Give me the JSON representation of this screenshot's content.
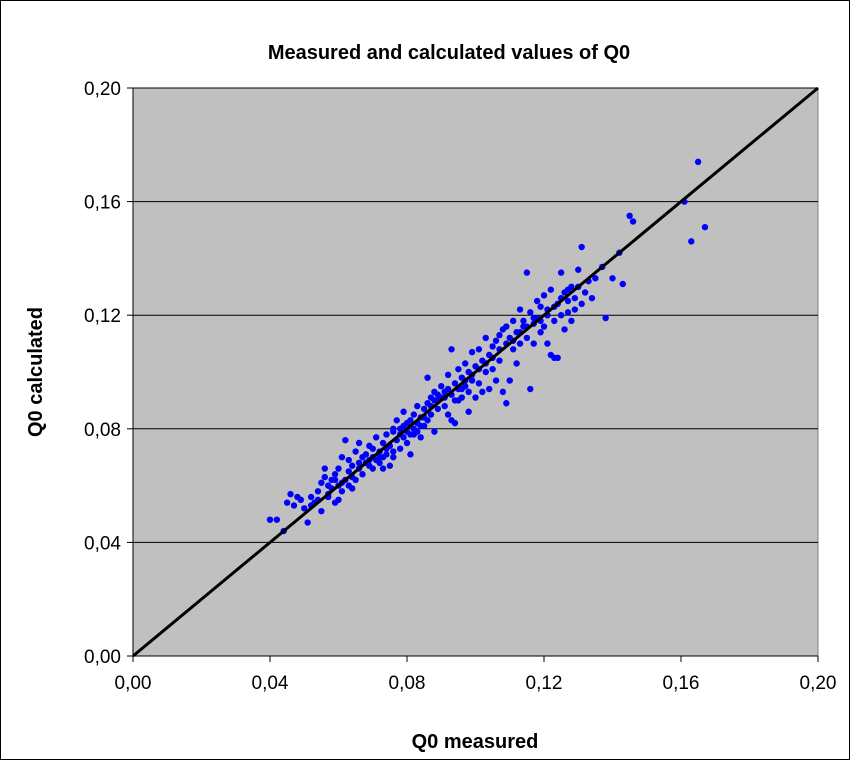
{
  "chart_data": {
    "type": "scatter",
    "title": "Measured and calculated values of Q0",
    "xlabel": "Q0 measured",
    "ylabel": "Q0 calculated",
    "xlim": [
      0,
      0.2
    ],
    "ylim": [
      0,
      0.2
    ],
    "x_ticks": [
      0,
      0.04,
      0.08,
      0.12,
      0.16,
      0.2
    ],
    "y_ticks": [
      0,
      0.04,
      0.08,
      0.12,
      0.16,
      0.2
    ],
    "x_tick_labels": [
      "0,00",
      "0,04",
      "0,08",
      "0,12",
      "0,16",
      "0,20"
    ],
    "y_tick_labels": [
      "0,00",
      "0,04",
      "0,08",
      "0,12",
      "0,16",
      "0,20"
    ],
    "grid": "horizontal",
    "legend": "none",
    "plot_background": "#c0c0c0",
    "point_color": "#0000ff",
    "reference_line": {
      "x": [
        0,
        0.2
      ],
      "y": [
        0,
        0.2
      ],
      "color": "#000000"
    },
    "points": [
      [
        0.04,
        0.048
      ],
      [
        0.042,
        0.048
      ],
      [
        0.044,
        0.044
      ],
      [
        0.045,
        0.054
      ],
      [
        0.046,
        0.057
      ],
      [
        0.047,
        0.053
      ],
      [
        0.048,
        0.056
      ],
      [
        0.049,
        0.055
      ],
      [
        0.05,
        0.052
      ],
      [
        0.051,
        0.047
      ],
      [
        0.052,
        0.053
      ],
      [
        0.052,
        0.056
      ],
      [
        0.053,
        0.054
      ],
      [
        0.054,
        0.058
      ],
      [
        0.055,
        0.051
      ],
      [
        0.055,
        0.061
      ],
      [
        0.056,
        0.063
      ],
      [
        0.056,
        0.066
      ],
      [
        0.057,
        0.057
      ],
      [
        0.058,
        0.059
      ],
      [
        0.058,
        0.062
      ],
      [
        0.059,
        0.054
      ],
      [
        0.059,
        0.064
      ],
      [
        0.06,
        0.06
      ],
      [
        0.06,
        0.066
      ],
      [
        0.061,
        0.058
      ],
      [
        0.061,
        0.07
      ],
      [
        0.062,
        0.062
      ],
      [
        0.062,
        0.076
      ],
      [
        0.063,
        0.06
      ],
      [
        0.063,
        0.065
      ],
      [
        0.064,
        0.059
      ],
      [
        0.064,
        0.067
      ],
      [
        0.065,
        0.062
      ],
      [
        0.065,
        0.072
      ],
      [
        0.066,
        0.066
      ],
      [
        0.066,
        0.075
      ],
      [
        0.067,
        0.064
      ],
      [
        0.068,
        0.068
      ],
      [
        0.068,
        0.071
      ],
      [
        0.069,
        0.067
      ],
      [
        0.069,
        0.074
      ],
      [
        0.07,
        0.07
      ],
      [
        0.07,
        0.073
      ],
      [
        0.071,
        0.069
      ],
      [
        0.071,
        0.077
      ],
      [
        0.072,
        0.068
      ],
      [
        0.072,
        0.072
      ],
      [
        0.073,
        0.075
      ],
      [
        0.073,
        0.066
      ],
      [
        0.074,
        0.071
      ],
      [
        0.074,
        0.078
      ],
      [
        0.075,
        0.067
      ],
      [
        0.075,
        0.074
      ],
      [
        0.076,
        0.072
      ],
      [
        0.076,
        0.08
      ],
      [
        0.077,
        0.076
      ],
      [
        0.077,
        0.083
      ],
      [
        0.078,
        0.078
      ],
      [
        0.078,
        0.073
      ],
      [
        0.079,
        0.081
      ],
      [
        0.079,
        0.086
      ],
      [
        0.08,
        0.079
      ],
      [
        0.08,
        0.075
      ],
      [
        0.081,
        0.083
      ],
      [
        0.081,
        0.071
      ],
      [
        0.082,
        0.08
      ],
      [
        0.082,
        0.085
      ],
      [
        0.083,
        0.082
      ],
      [
        0.083,
        0.088
      ],
      [
        0.084,
        0.077
      ],
      [
        0.084,
        0.084
      ],
      [
        0.085,
        0.087
      ],
      [
        0.085,
        0.081
      ],
      [
        0.086,
        0.089
      ],
      [
        0.086,
        0.098
      ],
      [
        0.087,
        0.085
      ],
      [
        0.087,
        0.091
      ],
      [
        0.088,
        0.079
      ],
      [
        0.088,
        0.093
      ],
      [
        0.089,
        0.09
      ],
      [
        0.089,
        0.087
      ],
      [
        0.09,
        0.095
      ],
      [
        0.09,
        0.091
      ],
      [
        0.091,
        0.088
      ],
      [
        0.091,
        0.093
      ],
      [
        0.092,
        0.085
      ],
      [
        0.092,
        0.099
      ],
      [
        0.093,
        0.108
      ],
      [
        0.093,
        0.083
      ],
      [
        0.094,
        0.096
      ],
      [
        0.094,
        0.082
      ],
      [
        0.095,
        0.101
      ],
      [
        0.095,
        0.094
      ],
      [
        0.096,
        0.098
      ],
      [
        0.096,
        0.091
      ],
      [
        0.097,
        0.103
      ],
      [
        0.097,
        0.095
      ],
      [
        0.098,
        0.1
      ],
      [
        0.098,
        0.086
      ],
      [
        0.099,
        0.097
      ],
      [
        0.099,
        0.107
      ],
      [
        0.1,
        0.102
      ],
      [
        0.1,
        0.091
      ],
      [
        0.101,
        0.096
      ],
      [
        0.101,
        0.108
      ],
      [
        0.102,
        0.104
      ],
      [
        0.102,
        0.093
      ],
      [
        0.103,
        0.1
      ],
      [
        0.103,
        0.112
      ],
      [
        0.104,
        0.106
      ],
      [
        0.104,
        0.094
      ],
      [
        0.105,
        0.109
      ],
      [
        0.105,
        0.101
      ],
      [
        0.106,
        0.111
      ],
      [
        0.106,
        0.097
      ],
      [
        0.107,
        0.113
      ],
      [
        0.107,
        0.104
      ],
      [
        0.108,
        0.115
      ],
      [
        0.108,
        0.093
      ],
      [
        0.109,
        0.116
      ],
      [
        0.109,
        0.089
      ],
      [
        0.11,
        0.112
      ],
      [
        0.11,
        0.097
      ],
      [
        0.111,
        0.118
      ],
      [
        0.111,
        0.108
      ],
      [
        0.112,
        0.114
      ],
      [
        0.112,
        0.103
      ],
      [
        0.113,
        0.122
      ],
      [
        0.113,
        0.11
      ],
      [
        0.114,
        0.116
      ],
      [
        0.114,
        0.118
      ],
      [
        0.115,
        0.135
      ],
      [
        0.115,
        0.112
      ],
      [
        0.116,
        0.094
      ],
      [
        0.116,
        0.121
      ],
      [
        0.117,
        0.117
      ],
      [
        0.117,
        0.11
      ],
      [
        0.118,
        0.125
      ],
      [
        0.118,
        0.119
      ],
      [
        0.119,
        0.123
      ],
      [
        0.119,
        0.114
      ],
      [
        0.12,
        0.127
      ],
      [
        0.12,
        0.116
      ],
      [
        0.121,
        0.12
      ],
      [
        0.121,
        0.11
      ],
      [
        0.122,
        0.106
      ],
      [
        0.122,
        0.129
      ],
      [
        0.123,
        0.105
      ],
      [
        0.123,
        0.118
      ],
      [
        0.124,
        0.124
      ],
      [
        0.124,
        0.105
      ],
      [
        0.125,
        0.135
      ],
      [
        0.125,
        0.12
      ],
      [
        0.126,
        0.128
      ],
      [
        0.126,
        0.115
      ],
      [
        0.127,
        0.129
      ],
      [
        0.127,
        0.121
      ],
      [
        0.128,
        0.118
      ],
      [
        0.128,
        0.13
      ],
      [
        0.129,
        0.126
      ],
      [
        0.129,
        0.122
      ],
      [
        0.13,
        0.136
      ],
      [
        0.13,
        0.13
      ],
      [
        0.131,
        0.144
      ],
      [
        0.131,
        0.124
      ],
      [
        0.132,
        0.128
      ],
      [
        0.133,
        0.132
      ],
      [
        0.134,
        0.126
      ],
      [
        0.135,
        0.133
      ],
      [
        0.137,
        0.137
      ],
      [
        0.138,
        0.119
      ],
      [
        0.14,
        0.133
      ],
      [
        0.142,
        0.142
      ],
      [
        0.143,
        0.131
      ],
      [
        0.145,
        0.155
      ],
      [
        0.146,
        0.153
      ],
      [
        0.161,
        0.16
      ],
      [
        0.163,
        0.146
      ],
      [
        0.165,
        0.174
      ],
      [
        0.167,
        0.151
      ],
      [
        0.057,
        0.06
      ],
      [
        0.06,
        0.055
      ],
      [
        0.063,
        0.069
      ],
      [
        0.067,
        0.07
      ],
      [
        0.07,
        0.066
      ],
      [
        0.073,
        0.07
      ],
      [
        0.076,
        0.07
      ],
      [
        0.079,
        0.077
      ],
      [
        0.081,
        0.078
      ],
      [
        0.083,
        0.079
      ],
      [
        0.085,
        0.084
      ],
      [
        0.087,
        0.088
      ],
      [
        0.089,
        0.092
      ],
      [
        0.091,
        0.091
      ],
      [
        0.093,
        0.092
      ],
      [
        0.095,
        0.09
      ],
      [
        0.097,
        0.097
      ],
      [
        0.099,
        0.099
      ],
      [
        0.101,
        0.101
      ],
      [
        0.103,
        0.103
      ],
      [
        0.105,
        0.105
      ],
      [
        0.107,
        0.108
      ],
      [
        0.109,
        0.11
      ],
      [
        0.111,
        0.111
      ],
      [
        0.113,
        0.114
      ],
      [
        0.115,
        0.116
      ],
      [
        0.117,
        0.119
      ],
      [
        0.119,
        0.118
      ],
      [
        0.121,
        0.122
      ],
      [
        0.123,
        0.123
      ],
      [
        0.125,
        0.126
      ],
      [
        0.127,
        0.125
      ],
      [
        0.092,
        0.094
      ],
      [
        0.094,
        0.09
      ],
      [
        0.096,
        0.094
      ],
      [
        0.098,
        0.093
      ],
      [
        0.088,
        0.09
      ],
      [
        0.086,
        0.083
      ],
      [
        0.084,
        0.081
      ],
      [
        0.082,
        0.078
      ],
      [
        0.08,
        0.082
      ],
      [
        0.078,
        0.08
      ],
      [
        0.076,
        0.079
      ],
      [
        0.074,
        0.073
      ],
      [
        0.072,
        0.07
      ],
      [
        0.069,
        0.069
      ],
      [
        0.066,
        0.068
      ],
      [
        0.064,
        0.063
      ],
      [
        0.061,
        0.061
      ],
      [
        0.059,
        0.062
      ],
      [
        0.057,
        0.056
      ],
      [
        0.054,
        0.055
      ]
    ]
  }
}
